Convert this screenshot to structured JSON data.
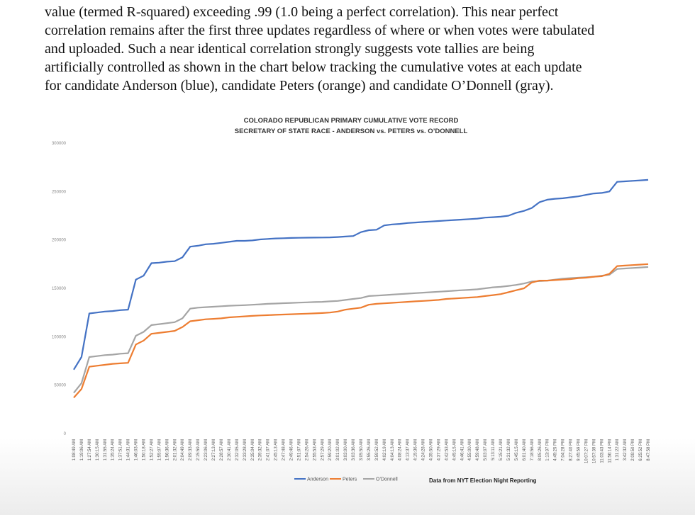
{
  "document": {
    "lines": [
      "value (termed R-squared) exceeding .99 (1.0 being a perfect correlation).  This near perfect",
      "correlation remains after the first three updates regardless of where or when votes were tabulated",
      "and uploaded.  Such a near identical correlation strongly suggests vote tallies are being",
      "artificially controlled as shown in the chart below tracking the cumulative votes at each update",
      "for candidate Anderson (blue), candidate Peters (orange) and candidate O’Donnell (gray)."
    ]
  },
  "chart_data": {
    "type": "line",
    "title": "COLORADO REPUBLICAN PRIMARY CUMULATIVE VOTE RECORD",
    "subtitle": "SECRETARY OF STATE RACE - ANDERSON vs. PETERS vs. O’DONNELL",
    "ylim": [
      0,
      300000
    ],
    "yticks": [
      "0",
      "50000",
      "100000",
      "150000",
      "200000",
      "250000",
      "300000"
    ],
    "grid": false,
    "legend_position": "bottom",
    "source_note": "Data from NYT Election Night Reporting",
    "categories": [
      "1:08:49 AM",
      "1:19:06 AM",
      "1:27:54 AM",
      "1:30:15 AM",
      "1:31:55 AM",
      "1:35:24 AM",
      "1:37:51 AM",
      "1:44:31 AM",
      "1:46:03 AM",
      "1:50:18 AM",
      "1:52:27 AM",
      "1:55:07 AM",
      "1:56:36 AM",
      "2:01:32 AM",
      "2:04:49 AM",
      "2:09:33 AM",
      "2:15:59 AM",
      "2:23:06 AM",
      "2:27:13 AM",
      "2:28:57 AM",
      "2:30:41 AM",
      "2:32:05 AM",
      "2:33:28 AM",
      "2:35:04 AM",
      "2:39:32 AM",
      "2:41:07 AM",
      "2:45:13 AM",
      "2:47:48 AM",
      "2:49:46 AM",
      "2:51:07 AM",
      "2:54:26 AM",
      "2:55:53 AM",
      "2:57:29 AM",
      "2:59:20 AM",
      "3:01:02 AM",
      "3:03:00 AM",
      "3:03:36 AM",
      "3:05:50 AM",
      "3:55:26 AM",
      "3:59:52 AM",
      "4:02:19 AM",
      "4:04:13 AM",
      "4:08:24 AM",
      "4:13:37 AM",
      "4:15:36 AM",
      "4:24:28 AM",
      "4:35:50 AM",
      "4:37:29 AM",
      "4:42:53 AM",
      "4:45:15 AM",
      "4:46:41 AM",
      "4:55:00 AM",
      "4:59:48 AM",
      "5:03:07 AM",
      "5:13:11 AM",
      "5:15:21 AM",
      "5:31:32 AM",
      "5:45:15 AM",
      "6:01:40 AM",
      "7:18:56 AM",
      "8:05:26 AM",
      "1:13:37 PM",
      "4:49:25 PM",
      "7:04:28 PM",
      "8:27:40 PM",
      "9:45:59 PM",
      "10:07:27 PM",
      "10:57:39 PM",
      "11:03:43 PM",
      "11:56:14 PM",
      "1:31:22 AM",
      "3:42:32 AM",
      "2:09:50 PM",
      "6:25:52 PM",
      "8:47:58 PM"
    ],
    "series": [
      {
        "name": "Anderson",
        "color": "#4472c4",
        "values": [
          66000,
          79000,
          124000,
          125000,
          126000,
          126500,
          127500,
          128000,
          159000,
          163000,
          176000,
          176500,
          177500,
          178000,
          182000,
          193000,
          194000,
          195500,
          196000,
          197000,
          198000,
          199000,
          199000,
          199500,
          200500,
          201000,
          201500,
          201700,
          202000,
          202200,
          202300,
          202400,
          202500,
          202600,
          203000,
          203500,
          204000,
          208000,
          210000,
          210500,
          215000,
          216000,
          216500,
          217500,
          218000,
          218500,
          219000,
          219500,
          220000,
          220500,
          221000,
          221500,
          222000,
          223000,
          223500,
          224000,
          225000,
          228000,
          230000,
          233000,
          239000,
          241500,
          242500,
          243000,
          244000,
          245000,
          246500,
          248000,
          248500,
          250000,
          260000,
          260500,
          261000,
          261500,
          262000
        ]
      },
      {
        "name": "Peters",
        "color": "#ed7d31",
        "values": [
          37000,
          46000,
          69000,
          70000,
          71000,
          72000,
          72500,
          73000,
          92000,
          96000,
          103000,
          104000,
          105000,
          106000,
          110000,
          116000,
          117000,
          118000,
          118500,
          119000,
          120000,
          120500,
          121000,
          121500,
          122000,
          122300,
          122600,
          122900,
          123200,
          123500,
          123800,
          124100,
          124500,
          125000,
          126000,
          128000,
          129000,
          130000,
          133000,
          134000,
          134500,
          135000,
          135500,
          136000,
          136500,
          137000,
          137500,
          138000,
          139000,
          139500,
          140000,
          140500,
          141000,
          142000,
          143000,
          144000,
          146000,
          148000,
          150000,
          156000,
          158000,
          158000,
          158500,
          159000,
          159500,
          160500,
          161000,
          162000,
          162500,
          165000,
          173000,
          173500,
          174000,
          174500,
          175000
        ]
      },
      {
        "name": "O’Donnell",
        "color": "#a5a5a5",
        "values": [
          42000,
          52000,
          79000,
          80000,
          81000,
          81500,
          82500,
          83000,
          101000,
          105000,
          112000,
          113000,
          114000,
          115000,
          119000,
          129000,
          130000,
          130500,
          131000,
          131500,
          132000,
          132300,
          132600,
          133000,
          133500,
          134000,
          134300,
          134600,
          134900,
          135200,
          135500,
          135800,
          136000,
          136500,
          137000,
          138000,
          139000,
          140000,
          142000,
          142500,
          143000,
          143500,
          144000,
          144500,
          145000,
          145500,
          146000,
          146500,
          147000,
          147500,
          148000,
          148500,
          149000,
          150000,
          151000,
          151500,
          152500,
          153500,
          155000,
          157000,
          157500,
          158000,
          159000,
          160000,
          160500,
          161000,
          161500,
          162000,
          163000,
          164000,
          170000,
          170500,
          171000,
          171500,
          172000
        ]
      }
    ]
  }
}
